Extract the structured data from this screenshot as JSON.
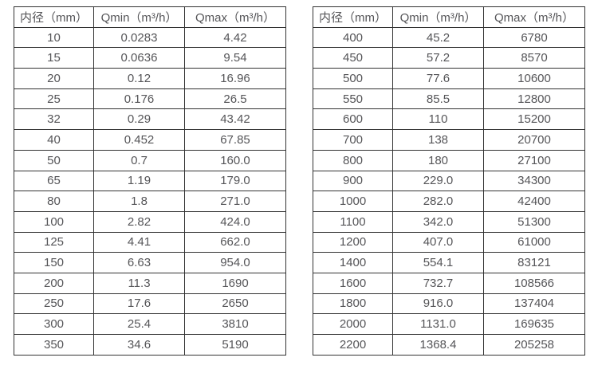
{
  "columns": [
    "内径（mm）",
    "Qmin（m³/h）",
    "Qmax（m³/h）"
  ],
  "tables": [
    {
      "name": "small-diameters",
      "rows": [
        [
          "10",
          "0.0283",
          "4.42"
        ],
        [
          "15",
          "0.0636",
          "9.54"
        ],
        [
          "20",
          "0.12",
          "16.96"
        ],
        [
          "25",
          "0.176",
          "26.5"
        ],
        [
          "32",
          "0.29",
          "43.42"
        ],
        [
          "40",
          "0.452",
          "67.85"
        ],
        [
          "50",
          "0.7",
          "160.0"
        ],
        [
          "65",
          "1.19",
          "179.0"
        ],
        [
          "80",
          "1.8",
          "271.0"
        ],
        [
          "100",
          "2.82",
          "424.0"
        ],
        [
          "125",
          "4.41",
          "662.0"
        ],
        [
          "150",
          "6.63",
          "954.0"
        ],
        [
          "200",
          "11.3",
          "1690"
        ],
        [
          "250",
          "17.6",
          "2650"
        ],
        [
          "300",
          "25.4",
          "3810"
        ],
        [
          "350",
          "34.6",
          "5190"
        ]
      ]
    },
    {
      "name": "large-diameters",
      "rows": [
        [
          "400",
          "45.2",
          "6780"
        ],
        [
          "450",
          "57.2",
          "8570"
        ],
        [
          "500",
          "77.6",
          "10600"
        ],
        [
          "550",
          "85.5",
          "12800"
        ],
        [
          "600",
          "110",
          "15200"
        ],
        [
          "700",
          "138",
          "20700"
        ],
        [
          "800",
          "180",
          "27100"
        ],
        [
          "900",
          "229.0",
          "34300"
        ],
        [
          "1000",
          "282.0",
          "42400"
        ],
        [
          "1100",
          "342.0",
          "51300"
        ],
        [
          "1200",
          "407.0",
          "61000"
        ],
        [
          "1400",
          "554.1",
          "83121"
        ],
        [
          "1600",
          "732.7",
          "108566"
        ],
        [
          "1800",
          "916.0",
          "137404"
        ],
        [
          "2000",
          "1131.0",
          "169635"
        ],
        [
          "2200",
          "1368.4",
          "205258"
        ]
      ]
    }
  ],
  "colors": {
    "border": "#333333",
    "text": "#555558",
    "background": "#ffffff"
  },
  "chart_data": {
    "type": "table",
    "title": "",
    "columns": [
      "内径（mm）",
      "Qmin（m³/h）",
      "Qmax（m³/h）"
    ],
    "rows": [
      [
        10,
        0.0283,
        4.42
      ],
      [
        15,
        0.0636,
        9.54
      ],
      [
        20,
        0.12,
        16.96
      ],
      [
        25,
        0.176,
        26.5
      ],
      [
        32,
        0.29,
        43.42
      ],
      [
        40,
        0.452,
        67.85
      ],
      [
        50,
        0.7,
        160.0
      ],
      [
        65,
        1.19,
        179.0
      ],
      [
        80,
        1.8,
        271.0
      ],
      [
        100,
        2.82,
        424.0
      ],
      [
        125,
        4.41,
        662.0
      ],
      [
        150,
        6.63,
        954.0
      ],
      [
        200,
        11.3,
        1690
      ],
      [
        250,
        17.6,
        2650
      ],
      [
        300,
        25.4,
        3810
      ],
      [
        350,
        34.6,
        5190
      ],
      [
        400,
        45.2,
        6780
      ],
      [
        450,
        57.2,
        8570
      ],
      [
        500,
        77.6,
        10600
      ],
      [
        550,
        85.5,
        12800
      ],
      [
        600,
        110,
        15200
      ],
      [
        700,
        138,
        20700
      ],
      [
        800,
        180,
        27100
      ],
      [
        900,
        229.0,
        34300
      ],
      [
        1000,
        282.0,
        42400
      ],
      [
        1100,
        342.0,
        51300
      ],
      [
        1200,
        407.0,
        61000
      ],
      [
        1400,
        554.1,
        83121
      ],
      [
        1600,
        732.7,
        108566
      ],
      [
        1800,
        916.0,
        137404
      ],
      [
        2000,
        1131.0,
        169635
      ],
      [
        2200,
        1368.4,
        205258
      ]
    ]
  }
}
